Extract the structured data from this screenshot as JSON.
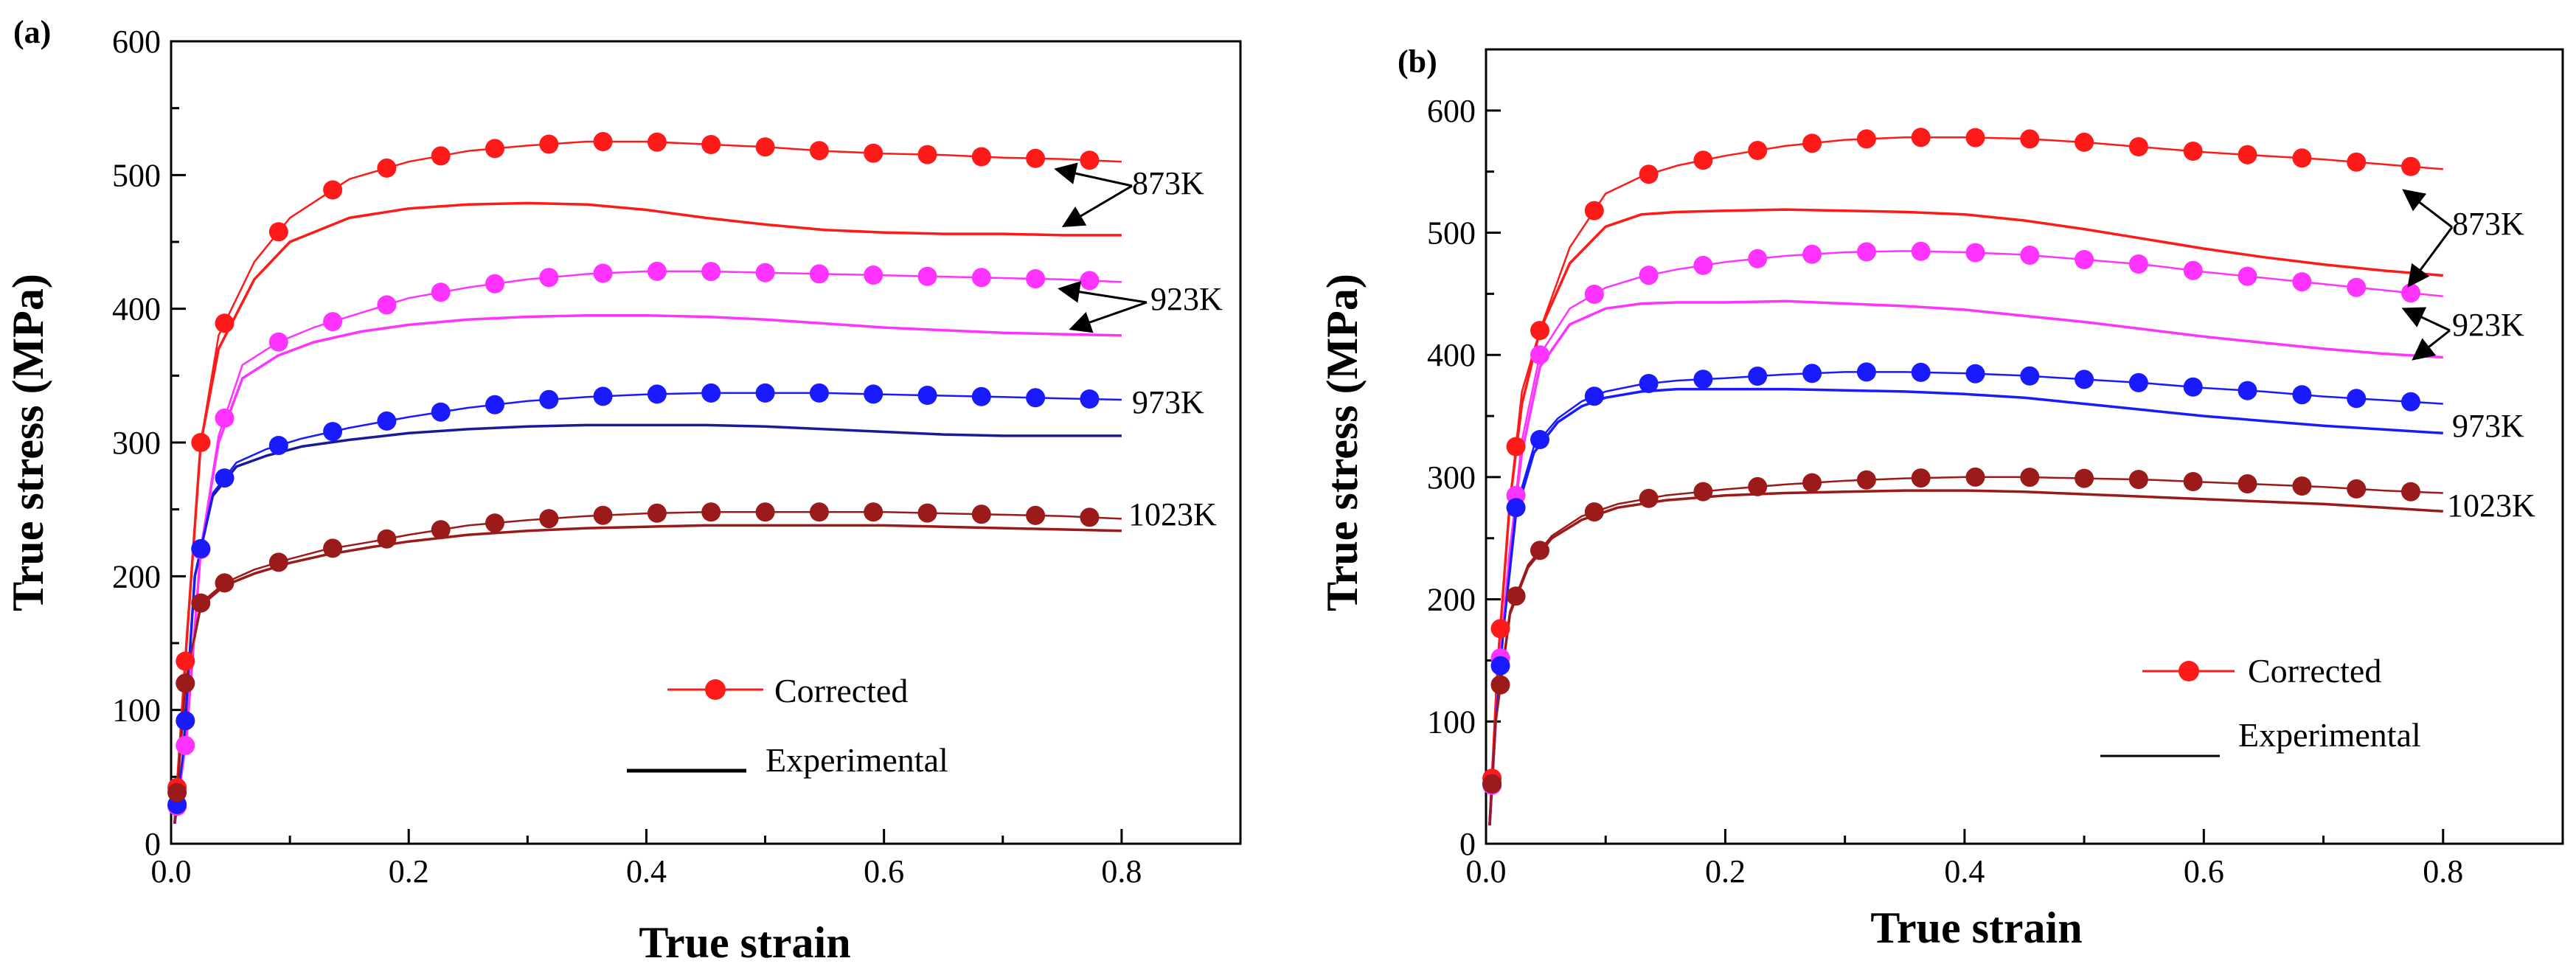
{
  "chart_data": [
    {
      "type": "line",
      "panel_label": "(a)",
      "xlabel": "True strain",
      "ylabel": "True stress (MPa)",
      "xlim": [
        0,
        0.9
      ],
      "ylim": [
        0,
        600
      ],
      "xticks": [
        0.0,
        0.2,
        0.4,
        0.6,
        0.8
      ],
      "yticks": [
        0,
        100,
        200,
        300,
        400,
        500,
        600
      ],
      "xtick_labels": [
        "0.0",
        "0.2",
        "0.4",
        "0.6",
        "0.8"
      ],
      "ytick_labels": [
        "0",
        "100",
        "200",
        "300",
        "400",
        "500",
        "600"
      ],
      "legend": {
        "position": "bottom-center",
        "entries": [
          "Corrected",
          "Experimental"
        ]
      },
      "annotations": [
        "873K",
        "923K",
        "973K",
        "1023K"
      ],
      "series": [
        {
          "name": "873K Corrected",
          "kind": "corrected",
          "color": "#ff1a1a",
          "x": [
            0.003,
            0.013,
            0.025,
            0.04,
            0.07,
            0.1,
            0.15,
            0.2,
            0.25,
            0.3,
            0.35,
            0.4,
            0.45,
            0.5,
            0.55,
            0.6,
            0.65,
            0.7,
            0.75,
            0.8
          ],
          "y": [
            15,
            150,
            300,
            380,
            435,
            468,
            497,
            510,
            518,
            522,
            525,
            525,
            523,
            521,
            518,
            516,
            515,
            513,
            512,
            510
          ]
        },
        {
          "name": "873K Experimental",
          "kind": "experimental",
          "color": "#ff1a1a",
          "x": [
            0.003,
            0.013,
            0.025,
            0.04,
            0.07,
            0.1,
            0.15,
            0.2,
            0.25,
            0.3,
            0.35,
            0.4,
            0.45,
            0.5,
            0.55,
            0.6,
            0.65,
            0.7,
            0.75,
            0.8
          ],
          "y": [
            15,
            150,
            300,
            370,
            422,
            450,
            468,
            475,
            478,
            479,
            478,
            474,
            468,
            463,
            459,
            457,
            456,
            456,
            455,
            455
          ]
        },
        {
          "name": "923K Corrected",
          "kind": "corrected",
          "color": "#ff33ff",
          "x": [
            0.003,
            0.013,
            0.025,
            0.04,
            0.06,
            0.09,
            0.12,
            0.16,
            0.2,
            0.25,
            0.3,
            0.35,
            0.4,
            0.45,
            0.5,
            0.55,
            0.6,
            0.65,
            0.7,
            0.75,
            0.8
          ],
          "y": [
            15,
            80,
            220,
            305,
            358,
            375,
            386,
            397,
            408,
            416,
            422,
            426,
            428,
            428,
            427,
            426,
            425,
            424,
            423,
            422,
            420
          ]
        },
        {
          "name": "923K Experimental",
          "kind": "experimental",
          "color": "#ff33ff",
          "x": [
            0.003,
            0.013,
            0.025,
            0.04,
            0.06,
            0.09,
            0.12,
            0.16,
            0.2,
            0.25,
            0.3,
            0.35,
            0.4,
            0.45,
            0.5,
            0.55,
            0.6,
            0.65,
            0.7,
            0.75,
            0.8
          ],
          "y": [
            15,
            80,
            220,
            300,
            348,
            365,
            375,
            383,
            388,
            392,
            394,
            395,
            395,
            394,
            392,
            389,
            386,
            384,
            382,
            381,
            380
          ]
        },
        {
          "name": "973K Corrected",
          "kind": "corrected",
          "color": "#1a1aff",
          "x": [
            0.003,
            0.01,
            0.02,
            0.035,
            0.055,
            0.08,
            0.11,
            0.15,
            0.2,
            0.25,
            0.3,
            0.35,
            0.4,
            0.45,
            0.5,
            0.55,
            0.6,
            0.65,
            0.7,
            0.75,
            0.8
          ],
          "y": [
            15,
            65,
            200,
            262,
            285,
            295,
            303,
            311,
            319,
            326,
            331,
            334,
            336,
            337,
            337,
            337,
            336,
            335,
            334,
            333,
            332
          ]
        },
        {
          "name": "973K Experimental",
          "kind": "experimental",
          "color": "#1a1a99",
          "x": [
            0.003,
            0.01,
            0.02,
            0.035,
            0.055,
            0.08,
            0.11,
            0.15,
            0.2,
            0.25,
            0.3,
            0.35,
            0.4,
            0.45,
            0.5,
            0.55,
            0.6,
            0.65,
            0.7,
            0.75,
            0.8
          ],
          "y": [
            15,
            65,
            200,
            260,
            282,
            290,
            297,
            302,
            307,
            310,
            312,
            313,
            313,
            313,
            312,
            310,
            308,
            306,
            305,
            305,
            305
          ]
        },
        {
          "name": "1023K Corrected",
          "kind": "corrected",
          "color": "#9b1a1a",
          "x": [
            0.003,
            0.012,
            0.025,
            0.045,
            0.07,
            0.1,
            0.13,
            0.17,
            0.2,
            0.25,
            0.3,
            0.35,
            0.4,
            0.45,
            0.5,
            0.55,
            0.6,
            0.65,
            0.7,
            0.75,
            0.8
          ],
          "y": [
            15,
            120,
            180,
            195,
            205,
            213,
            220,
            226,
            231,
            238,
            242,
            245,
            247,
            248,
            248,
            248,
            248,
            247,
            246,
            245,
            243
          ]
        },
        {
          "name": "1023K Experimental",
          "kind": "experimental",
          "color": "#9b1a1a",
          "x": [
            0.003,
            0.012,
            0.025,
            0.045,
            0.07,
            0.1,
            0.13,
            0.17,
            0.2,
            0.25,
            0.3,
            0.35,
            0.4,
            0.45,
            0.5,
            0.55,
            0.6,
            0.65,
            0.7,
            0.75,
            0.8
          ],
          "y": [
            15,
            120,
            178,
            193,
            202,
            210,
            216,
            222,
            226,
            231,
            234,
            236,
            237,
            238,
            238,
            238,
            238,
            237,
            236,
            235,
            234
          ]
        }
      ]
    },
    {
      "type": "line",
      "panel_label": "(b)",
      "xlabel": "True strain",
      "ylabel": "True stress (MPa)",
      "xlim": [
        0,
        0.9
      ],
      "ylim": [
        0,
        650
      ],
      "xticks": [
        0.0,
        0.2,
        0.4,
        0.6,
        0.8
      ],
      "yticks": [
        0,
        100,
        200,
        300,
        400,
        500,
        600
      ],
      "xtick_labels": [
        "0.0",
        "0.2",
        "0.4",
        "0.6",
        "0.8"
      ],
      "ytick_labels": [
        "0",
        "100",
        "200",
        "300",
        "400",
        "500",
        "600"
      ],
      "legend": {
        "position": "bottom-right",
        "entries": [
          "Corrected",
          "Experimental"
        ]
      },
      "annotations": [
        "873K",
        "923K",
        "973K",
        "1023K"
      ],
      "series": [
        {
          "name": "873K Corrected",
          "kind": "corrected",
          "color": "#ff1a1a",
          "x": [
            0.003,
            0.01,
            0.02,
            0.03,
            0.045,
            0.07,
            0.1,
            0.13,
            0.16,
            0.2,
            0.25,
            0.3,
            0.35,
            0.4,
            0.45,
            0.5,
            0.55,
            0.6,
            0.65,
            0.7,
            0.75,
            0.8
          ],
          "y": [
            15,
            150,
            280,
            370,
            420,
            488,
            532,
            546,
            555,
            563,
            571,
            576,
            578,
            578,
            577,
            574,
            570,
            566,
            563,
            560,
            556,
            552
          ]
        },
        {
          "name": "873K Experimental",
          "kind": "experimental",
          "color": "#ff1a1a",
          "x": [
            0.003,
            0.01,
            0.02,
            0.03,
            0.045,
            0.07,
            0.1,
            0.13,
            0.16,
            0.2,
            0.25,
            0.3,
            0.35,
            0.4,
            0.45,
            0.5,
            0.55,
            0.6,
            0.65,
            0.7,
            0.75,
            0.8
          ],
          "y": [
            15,
            150,
            280,
            360,
            420,
            475,
            505,
            515,
            517,
            518,
            519,
            518,
            517,
            515,
            510,
            503,
            495,
            487,
            480,
            474,
            469,
            465
          ]
        },
        {
          "name": "923K Corrected",
          "kind": "corrected",
          "color": "#ff33ff",
          "x": [
            0.003,
            0.01,
            0.02,
            0.03,
            0.045,
            0.07,
            0.1,
            0.13,
            0.16,
            0.2,
            0.25,
            0.3,
            0.35,
            0.4,
            0.45,
            0.5,
            0.55,
            0.6,
            0.65,
            0.7,
            0.75,
            0.8
          ],
          "y": [
            15,
            130,
            240,
            330,
            400,
            438,
            455,
            464,
            470,
            476,
            481,
            484,
            485,
            484,
            482,
            478,
            474,
            468,
            463,
            458,
            453,
            448
          ]
        },
        {
          "name": "923K Experimental",
          "kind": "experimental",
          "color": "#ff33ff",
          "x": [
            0.003,
            0.01,
            0.02,
            0.03,
            0.045,
            0.07,
            0.1,
            0.13,
            0.16,
            0.2,
            0.25,
            0.3,
            0.35,
            0.4,
            0.45,
            0.5,
            0.55,
            0.6,
            0.65,
            0.7,
            0.75,
            0.8
          ],
          "y": [
            15,
            130,
            240,
            320,
            390,
            425,
            438,
            442,
            443,
            443,
            444,
            442,
            440,
            437,
            432,
            427,
            421,
            415,
            410,
            405,
            401,
            398
          ]
        },
        {
          "name": "973K Corrected",
          "kind": "corrected",
          "color": "#1a1aff",
          "x": [
            0.003,
            0.008,
            0.015,
            0.025,
            0.04,
            0.06,
            0.08,
            0.1,
            0.13,
            0.16,
            0.2,
            0.25,
            0.3,
            0.35,
            0.4,
            0.45,
            0.5,
            0.55,
            0.6,
            0.65,
            0.7,
            0.75,
            0.8
          ],
          "y": [
            15,
            100,
            180,
            275,
            325,
            348,
            362,
            370,
            376,
            379,
            381,
            384,
            386,
            386,
            385,
            383,
            380,
            377,
            373,
            370,
            366,
            363,
            360
          ]
        },
        {
          "name": "973K Experimental",
          "kind": "experimental",
          "color": "#1a1aff",
          "x": [
            0.003,
            0.008,
            0.015,
            0.025,
            0.04,
            0.06,
            0.08,
            0.1,
            0.13,
            0.16,
            0.2,
            0.25,
            0.3,
            0.35,
            0.4,
            0.45,
            0.5,
            0.55,
            0.6,
            0.65,
            0.7,
            0.75,
            0.8
          ],
          "y": [
            15,
            100,
            180,
            270,
            320,
            345,
            358,
            365,
            370,
            372,
            372,
            372,
            371,
            370,
            368,
            365,
            360,
            355,
            350,
            346,
            342,
            339,
            336
          ]
        },
        {
          "name": "1023K Corrected",
          "kind": "corrected",
          "color": "#9b1a1a",
          "x": [
            0.003,
            0.008,
            0.02,
            0.035,
            0.055,
            0.08,
            0.11,
            0.15,
            0.2,
            0.25,
            0.3,
            0.35,
            0.4,
            0.45,
            0.5,
            0.55,
            0.6,
            0.65,
            0.7,
            0.75,
            0.8
          ],
          "y": [
            15,
            100,
            190,
            228,
            252,
            268,
            278,
            285,
            290,
            294,
            297,
            299,
            300,
            300,
            299,
            298,
            296,
            294,
            292,
            289,
            287
          ]
        },
        {
          "name": "1023K Experimental",
          "kind": "experimental",
          "color": "#9b1a1a",
          "x": [
            0.003,
            0.008,
            0.02,
            0.035,
            0.055,
            0.08,
            0.11,
            0.15,
            0.2,
            0.25,
            0.3,
            0.35,
            0.4,
            0.45,
            0.5,
            0.55,
            0.6,
            0.65,
            0.7,
            0.75,
            0.8
          ],
          "y": [
            15,
            100,
            188,
            226,
            250,
            265,
            275,
            281,
            285,
            287,
            288,
            289,
            289,
            288,
            286,
            284,
            282,
            280,
            278,
            275,
            272
          ]
        }
      ]
    }
  ]
}
